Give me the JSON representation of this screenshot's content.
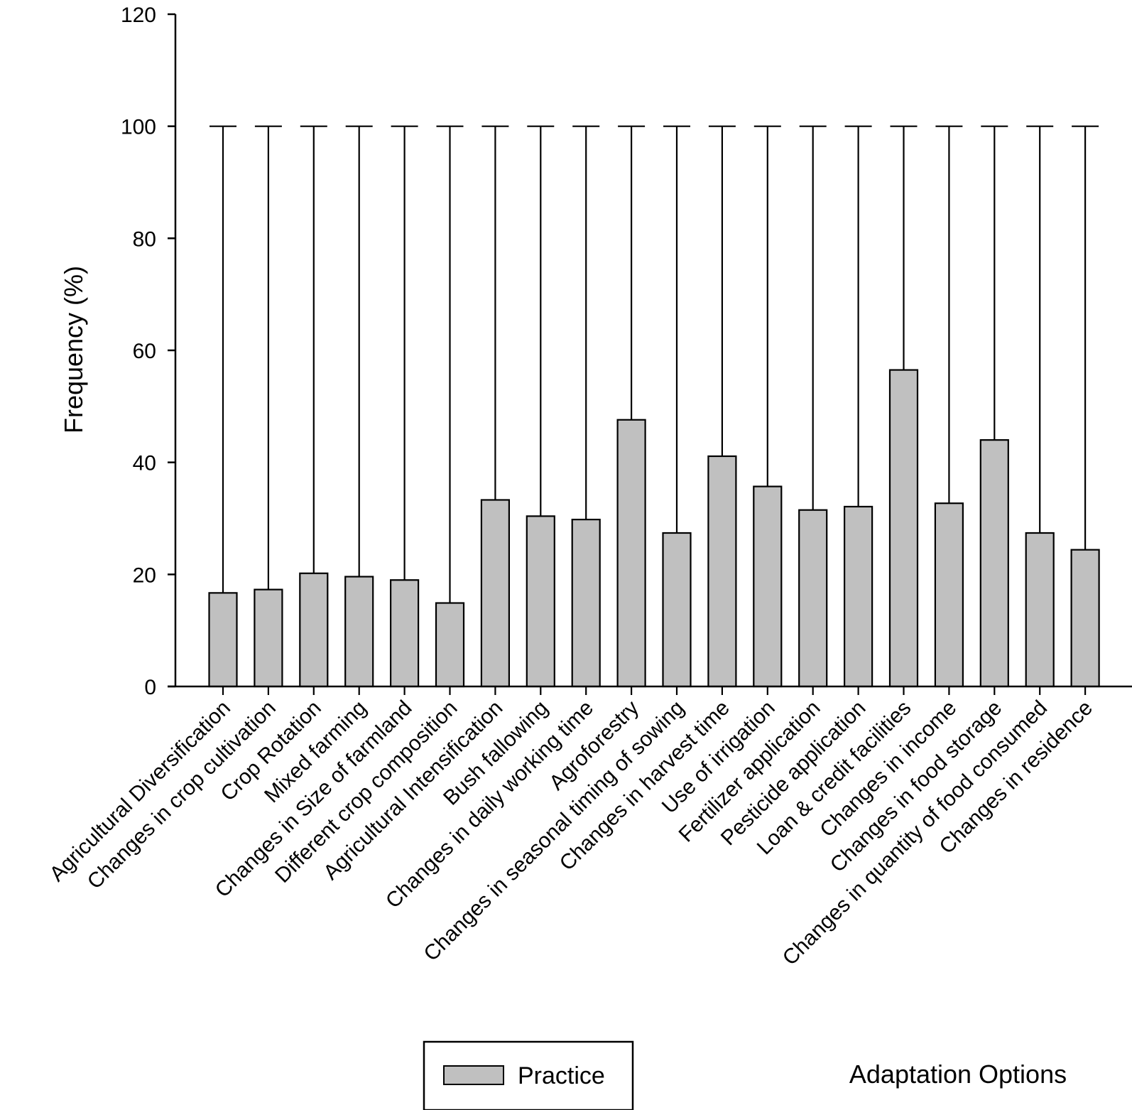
{
  "chart_data": {
    "type": "bar",
    "xlabel": "Adaptation Options",
    "ylabel": "Frequency (%)",
    "ylim": [
      0,
      120
    ],
    "yticks": [
      0,
      20,
      40,
      60,
      80,
      100,
      120
    ],
    "grid": false,
    "legend_position": "bottom-center",
    "categories": [
      "Agricultural Diversification",
      "Changes in crop cultivation",
      "Crop Rotation",
      "Mixed farming",
      "Changes in Size of farmland",
      "Different crop composition",
      "Agricultural Intensification",
      "Bush fallowing",
      "Changes in daily working time",
      "Agroforestry",
      "Changes in seasonal timing of sowing",
      "Changes in harvest time",
      "Use of irrigation",
      "Fertilizer application",
      "Pesticide application",
      "Loan & credit facilities",
      "Changes in income",
      "Changes in food storage",
      "Changes in quantity of food consumed",
      "Changes in residence"
    ],
    "series": [
      {
        "name": "Practice",
        "color": "#c0c0c0",
        "values": [
          16.7,
          17.3,
          20.2,
          19.6,
          19.0,
          14.9,
          33.3,
          30.4,
          29.8,
          47.6,
          27.4,
          41.1,
          35.7,
          31.5,
          32.1,
          56.5,
          32.7,
          44.0,
          27.4,
          24.4
        ],
        "error_upper": [
          100,
          100,
          100,
          100,
          100,
          100,
          100,
          100,
          100,
          100,
          100,
          100,
          100,
          100,
          100,
          100,
          100,
          100,
          100,
          100
        ]
      }
    ]
  }
}
